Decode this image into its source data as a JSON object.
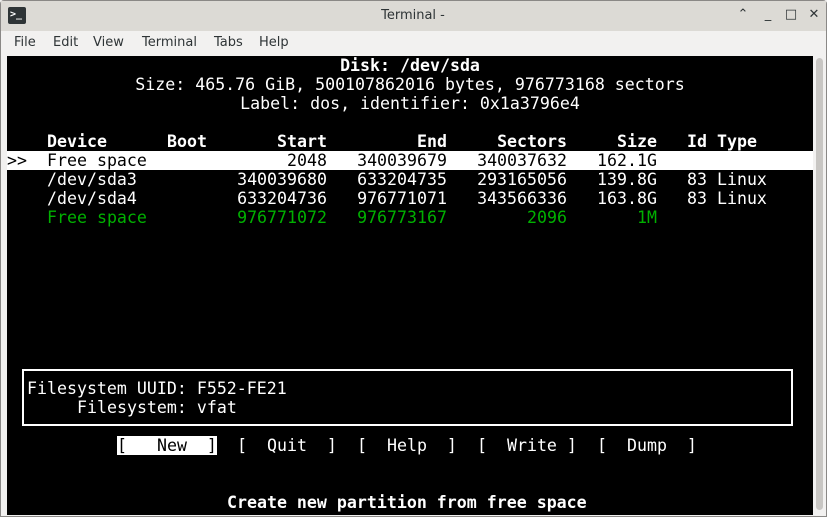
{
  "window": {
    "title": "Terminal -",
    "menu": [
      "File",
      "Edit",
      "View",
      "Terminal",
      "Tabs",
      "Help"
    ]
  },
  "disk": {
    "title": "Disk: /dev/sda",
    "size": "Size: 465.76 GiB, 500107862016 bytes, 976773168 sectors",
    "label": "Label: dos, identifier: 0x1a3796e4"
  },
  "table": {
    "headers": {
      "device": "Device",
      "boot": "Boot",
      "start": "Start",
      "end": "End",
      "sectors": "Sectors",
      "size": "Size",
      "idtype": "Id Type"
    },
    "rows": [
      {
        "marker": ">>",
        "device": "Free space",
        "boot": "",
        "start": "2048",
        "end": "340039679",
        "sectors": "340037632",
        "size": "162.1G",
        "idtype": "",
        "selected": true
      },
      {
        "marker": "",
        "device": "/dev/sda3",
        "boot": "",
        "start": "340039680",
        "end": "633204735",
        "sectors": "293165056",
        "size": "139.8G",
        "idtype": "83 Linux"
      },
      {
        "marker": "",
        "device": "/dev/sda4",
        "boot": "",
        "start": "633204736",
        "end": "976771071",
        "sectors": "343566336",
        "size": "163.8G",
        "idtype": "83 Linux"
      },
      {
        "marker": "",
        "device": "Free space",
        "boot": "",
        "start": "976771072",
        "end": "976773167",
        "sectors": "2096",
        "size": "1M",
        "idtype": "",
        "color": "#00b000"
      }
    ]
  },
  "info": {
    "uuid": "Filesystem UUID: F552-FE21",
    "fs": "Filesystem: vfat"
  },
  "buttons": [
    "[   New  ]",
    "[  Quit  ]",
    "[  Help  ]",
    "[  Write ]",
    "[  Dump  ]"
  ],
  "status": "Create new partition from free space"
}
